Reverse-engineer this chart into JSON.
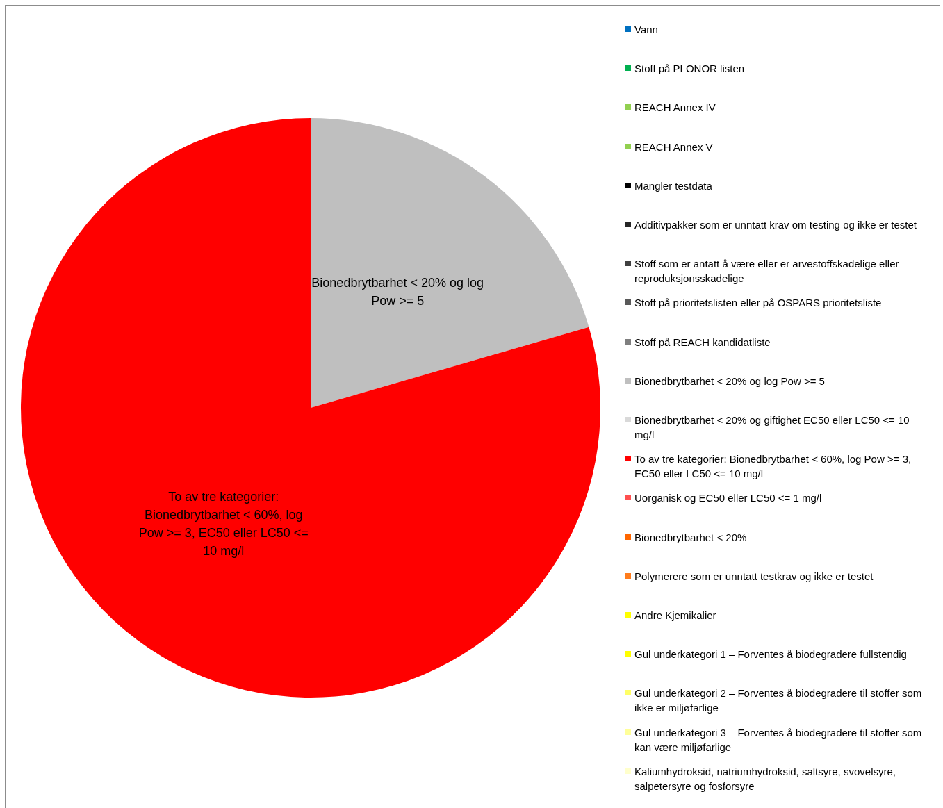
{
  "chart_data": {
    "type": "pie",
    "categories": [
      "Vann",
      "Stoff på PLONOR listen",
      "REACH Annex IV",
      "REACH Annex V",
      "Mangler testdata",
      "Additivpakker som er unntatt krav om testing og ikke er testet",
      "Stoff som er antatt å være eller er arvestoffskadelige eller reproduksjonsskadelige",
      "Stoff på prioritetslisten eller på OSPARS prioritetsliste",
      "Stoff på REACH kandidatliste",
      "Bionedbrytbarhet < 20% og log Pow >= 5",
      "Bionedbrytbarhet < 20% og giftighet EC50 eller LC50 <= 10 mg/l",
      "To av tre kategorier: Bionedbrytbarhet < 60%, log Pow >= 3, EC50 eller LC50 <= 10 mg/l",
      "Uorganisk og EC50 eller LC50 <= 1 mg/l",
      "Bionedbrytbarhet < 20%",
      "Polymerere som er unntatt testkrav og ikke er testet",
      "Andre Kjemikalier",
      "Gul underkategori 1 – Forventes å biodegradere fullstendig",
      "Gul underkategori 2 – Forventes å biodegradere til stoffer som ikke er miljøfarlige",
      "Gul underkategori 3 – Forventes å biodegradere til stoffer som kan være miljøfarlige",
      "Kaliumhydroksid, natriumhydroksid, saltsyre, svovelsyre, salpetersyre og fosforsyre"
    ],
    "values": [
      0,
      0,
      0,
      0,
      0,
      0,
      0,
      0,
      0,
      20.5,
      0,
      79.5,
      0,
      0,
      0,
      0,
      0,
      0,
      0,
      0
    ],
    "colors": [
      "#0070c0",
      "#00b050",
      "#92d050",
      "#92d050",
      "#000000",
      "#262626",
      "#404040",
      "#595959",
      "#7f7f7f",
      "#bfbfbf",
      "#d9d9d9",
      "#ff0000",
      "#ff5050",
      "#ff6600",
      "#ff7c1c",
      "#ffff00",
      "#ffff00",
      "#ffff66",
      "#ffff99",
      "#ffffcc"
    ],
    "legend": "right"
  }
}
